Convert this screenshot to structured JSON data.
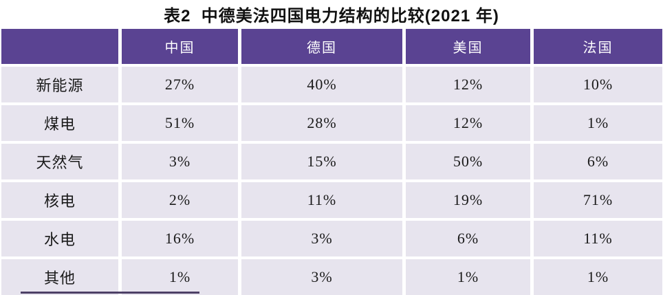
{
  "title": "表2  中德美法四国电力结构的比较(2021 年)",
  "colors": {
    "header_bg": "#5a4392",
    "cell_bg": "#e7e4ee",
    "header_text": "#ffffff",
    "body_text": "#1a1a1a",
    "page_bg": "#ffffff"
  },
  "table": {
    "columns": [
      "",
      "中国",
      "德国",
      "美国",
      "法国"
    ],
    "rows": [
      {
        "label": "新能源",
        "values": [
          "27%",
          "40%",
          "12%",
          "10%"
        ]
      },
      {
        "label": "煤电",
        "values": [
          "51%",
          "28%",
          "12%",
          "1%"
        ]
      },
      {
        "label": "天然气",
        "values": [
          "3%",
          "15%",
          "50%",
          "6%"
        ]
      },
      {
        "label": "核电",
        "values": [
          "2%",
          "11%",
          "19%",
          "71%"
        ]
      },
      {
        "label": "水电",
        "values": [
          "16%",
          "3%",
          "6%",
          "11%"
        ]
      },
      {
        "label": "其他",
        "values": [
          "1%",
          "3%",
          "1%",
          "1%"
        ]
      }
    ]
  },
  "chart_data": {
    "type": "table",
    "title": "表2 中德美法四国电力结构的比较(2021年)",
    "categories": [
      "中国",
      "德国",
      "美国",
      "法国"
    ],
    "series": [
      {
        "name": "新能源",
        "values": [
          27,
          40,
          12,
          10
        ]
      },
      {
        "name": "煤电",
        "values": [
          51,
          28,
          12,
          1
        ]
      },
      {
        "name": "天然气",
        "values": [
          3,
          15,
          50,
          6
        ]
      },
      {
        "name": "核电",
        "values": [
          2,
          11,
          19,
          71
        ]
      },
      {
        "name": "水电",
        "values": [
          16,
          3,
          6,
          11
        ]
      },
      {
        "name": "其他",
        "values": [
          1,
          3,
          1,
          1
        ]
      }
    ],
    "unit": "%",
    "layout_hints": {
      "header_fill": "#5a4392",
      "cell_fill": "#e7e4ee",
      "gridlines": "white gutters between cells"
    }
  }
}
